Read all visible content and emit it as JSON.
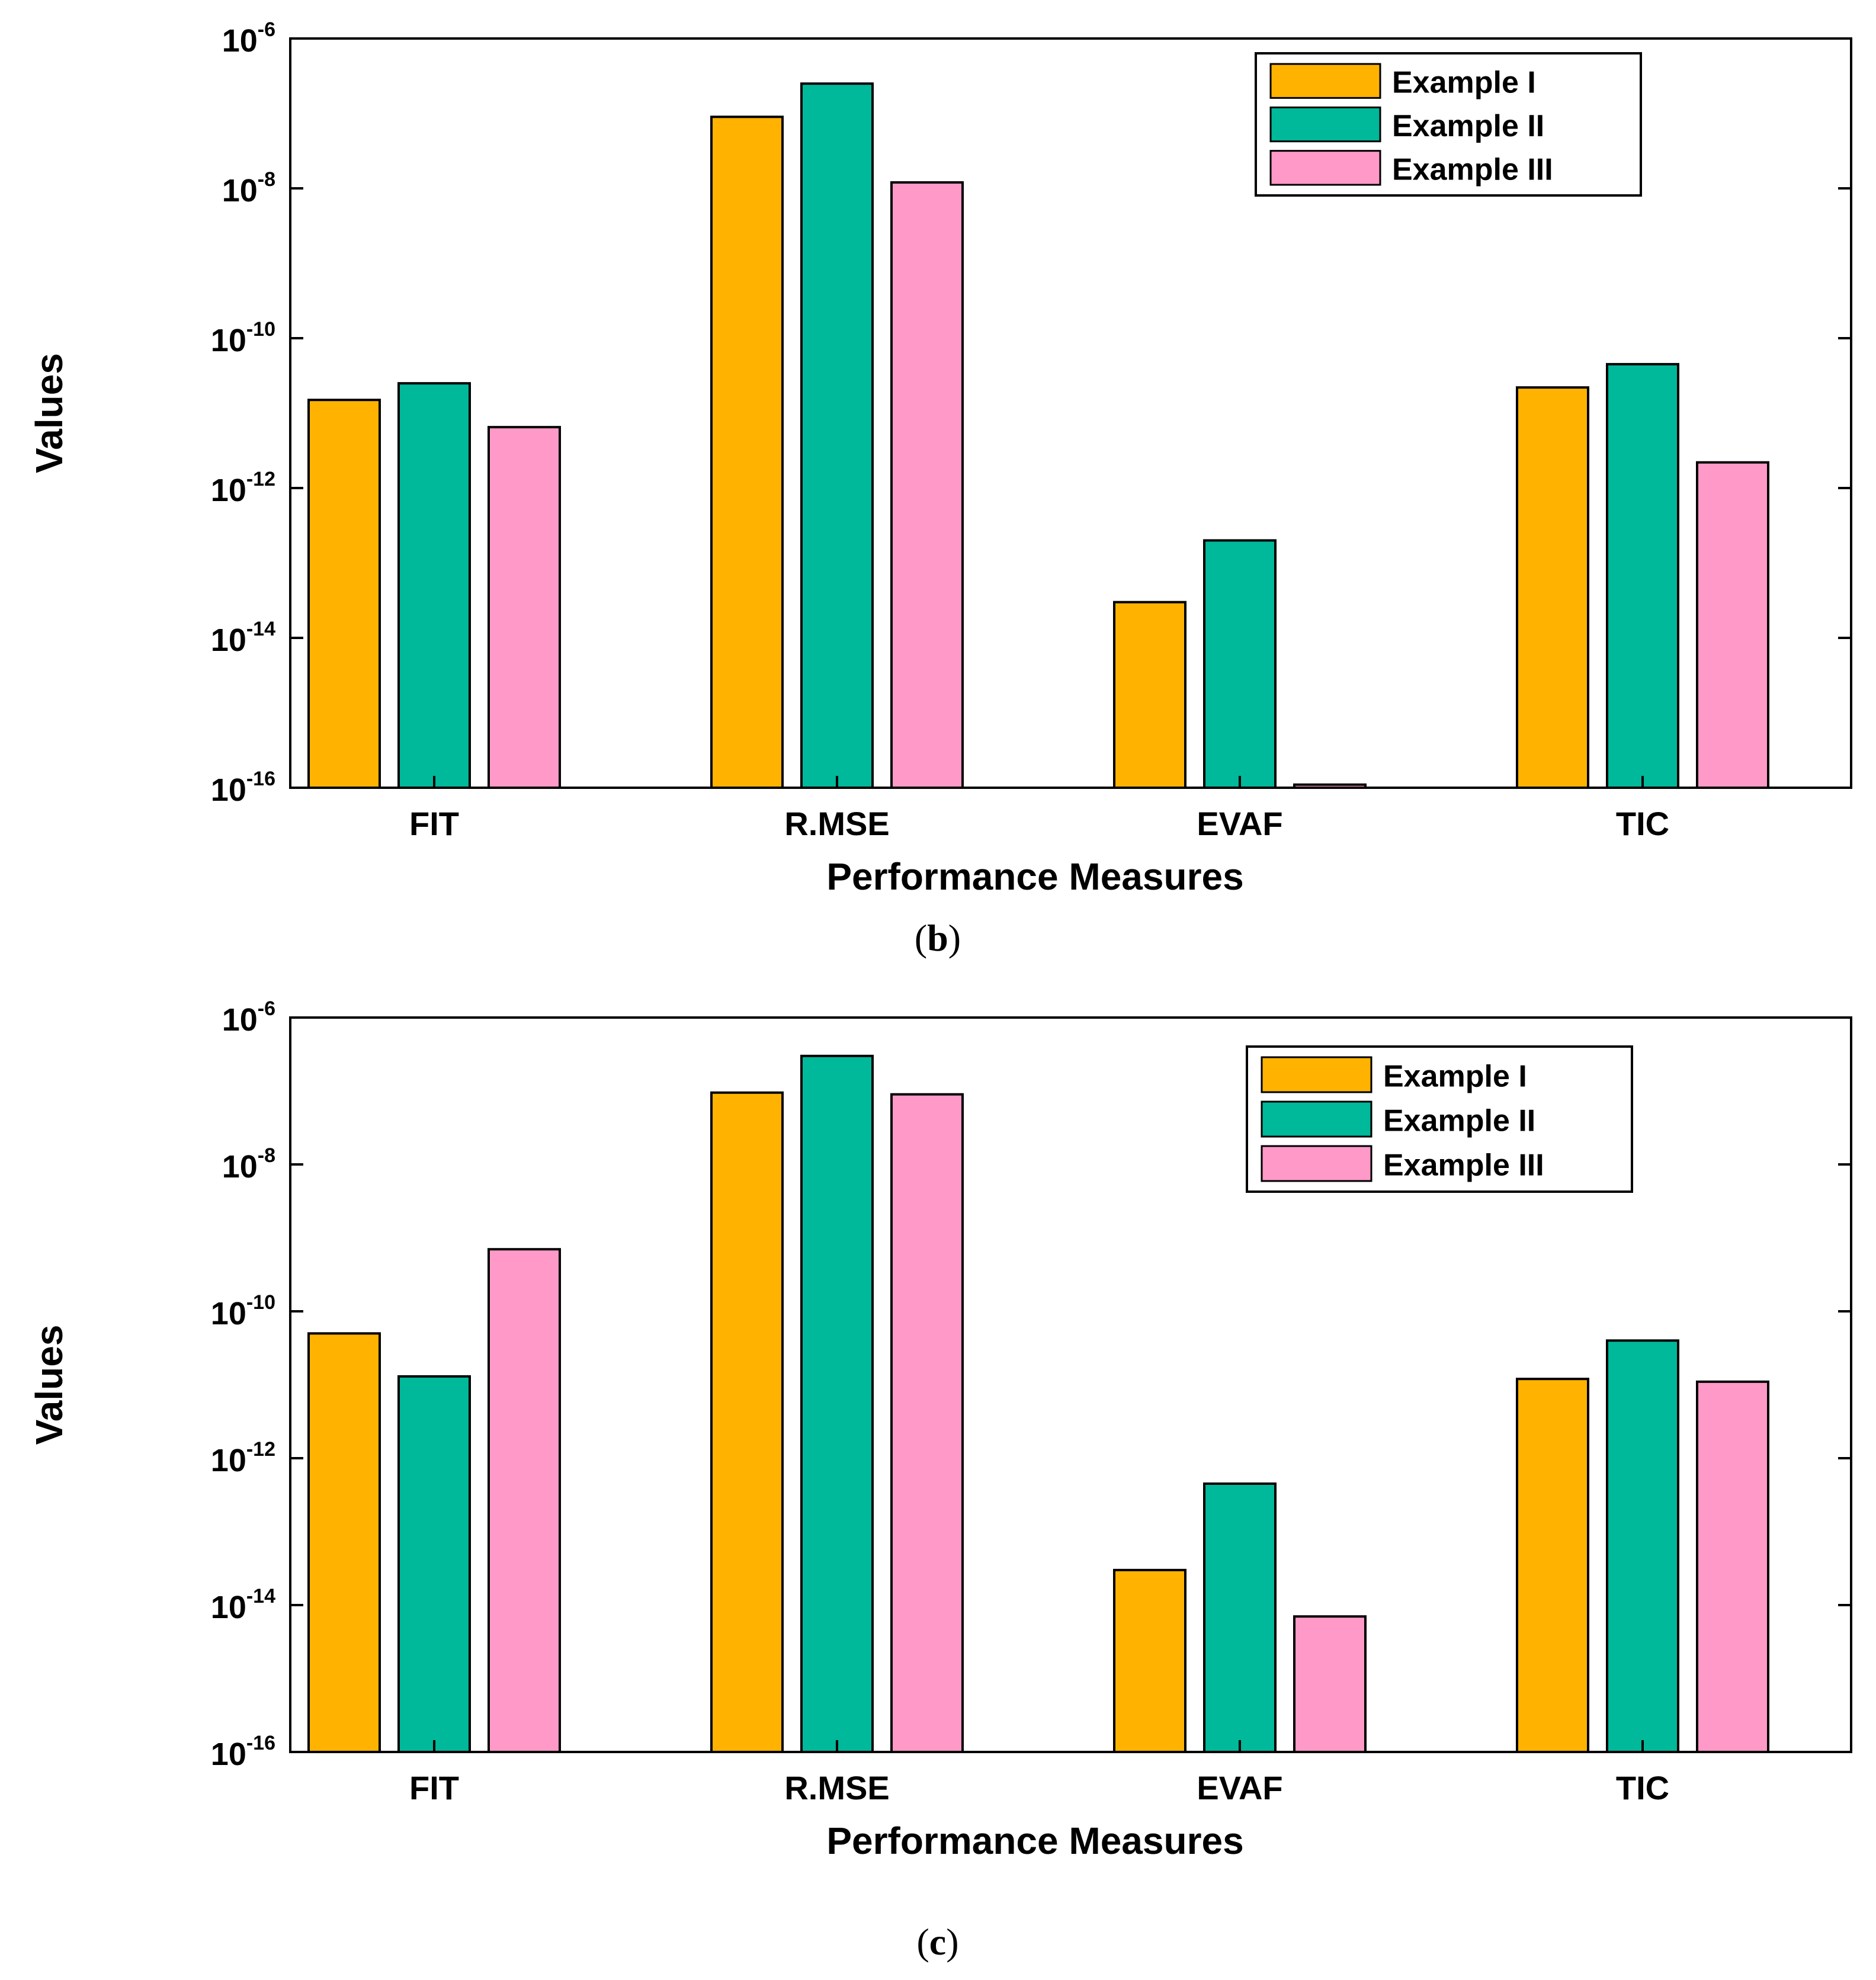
{
  "colors": {
    "Example I": "#FFB300",
    "Example II": "#00B89A",
    "Example III": "#FF99C8"
  },
  "chart_data": [
    {
      "type": "bar",
      "panel_label": "b",
      "categories": [
        "FIT",
        "R.MSE",
        "EVAF",
        "TIC"
      ],
      "series": [
        {
          "name": "Example I",
          "values": [
            1.5e-11,
            9e-08,
            3e-14,
            2.2e-11
          ]
        },
        {
          "name": "Example II",
          "values": [
            2.5e-11,
            2.5e-07,
            2e-13,
            4.5e-11
          ]
        },
        {
          "name": "Example III",
          "values": [
            6.5e-12,
            1.2e-08,
            1.1e-16,
            2.2e-12
          ]
        }
      ],
      "xlabel": "Performance Measures",
      "ylabel": "Values",
      "yscale": "log",
      "ylim": [
        1e-16,
        1e-06
      ],
      "yticks": [
        {
          "base": "10",
          "exp": "-16"
        },
        {
          "base": "10",
          "exp": "-14"
        },
        {
          "base": "10",
          "exp": "-12"
        },
        {
          "base": "10",
          "exp": "-10"
        },
        {
          "base": "10",
          "exp": "-8"
        },
        {
          "base": "10",
          "exp": "-6"
        }
      ],
      "legend_position": "top-right",
      "grid": false
    },
    {
      "type": "bar",
      "panel_label": "c",
      "categories": [
        "FIT",
        "R.MSE",
        "EVAF",
        "TIC"
      ],
      "series": [
        {
          "name": "Example I",
          "values": [
            5e-11,
            9.5e-08,
            3e-14,
            1.2e-11
          ]
        },
        {
          "name": "Example II",
          "values": [
            1.3e-11,
            3e-07,
            4.5e-13,
            4e-11
          ]
        },
        {
          "name": "Example III",
          "values": [
            7e-10,
            9e-08,
            7e-15,
            1.1e-11
          ]
        }
      ],
      "xlabel": "Performance Measures",
      "ylabel": "Values",
      "yscale": "log",
      "ylim": [
        1e-16,
        1e-06
      ],
      "yticks": [
        {
          "base": "10",
          "exp": "-16"
        },
        {
          "base": "10",
          "exp": "-14"
        },
        {
          "base": "10",
          "exp": "-12"
        },
        {
          "base": "10",
          "exp": "-10"
        },
        {
          "base": "10",
          "exp": "-8"
        },
        {
          "base": "10",
          "exp": "-6"
        }
      ],
      "legend_position": "top-right",
      "grid": false
    }
  ]
}
